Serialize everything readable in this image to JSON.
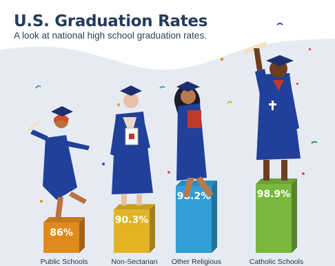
{
  "header": {
    "title": "U.S. Graduation Rates",
    "subtitle": "A look at national high school graduation rates."
  },
  "colors": {
    "background": "#e6ebf3",
    "wave": "#ffffff",
    "title": "#243b5c",
    "gown": "#21409a",
    "bars": [
      "#e08a1e",
      "#e3b324",
      "#2f9fd6",
      "#79b83c"
    ]
  },
  "chart_data": {
    "type": "bar",
    "title": "U.S. Graduation Rates",
    "subtitle": "A look at national high school graduation rates.",
    "categories": [
      "Public Schools",
      "Non-Sectarian",
      "Other Religious",
      "Catholic Schools"
    ],
    "values": [
      86,
      90.3,
      98.2,
      98.9
    ],
    "value_labels": [
      "86%",
      "90.3%",
      "98.2%",
      "98.9%"
    ],
    "xlabel": "",
    "ylabel": "",
    "grid": false,
    "legend": "none"
  }
}
